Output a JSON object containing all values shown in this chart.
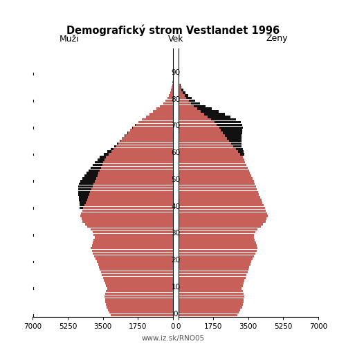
{
  "title": "Demografický strom Vestlandet 1996",
  "col_muzi": "Muži",
  "col_vek": "Vek",
  "col_zeny": "Ženy",
  "footer": "www.iz.sk/RNO05",
  "bar_color": "#c8605a",
  "black_color": "#111111",
  "xlim": 7000,
  "male_red": [
    3100,
    3180,
    3250,
    3320,
    3370,
    3400,
    3380,
    3420,
    3400,
    3350,
    3300,
    3350,
    3390,
    3440,
    3500,
    3550,
    3600,
    3650,
    3700,
    3750,
    3800,
    3870,
    3940,
    4000,
    4050,
    4100,
    4060,
    4020,
    3970,
    3920,
    3960,
    4020,
    4130,
    4280,
    4400,
    4520,
    4580,
    4640,
    4590,
    4540,
    4480,
    4420,
    4360,
    4300,
    4250,
    4190,
    4140,
    4080,
    4020,
    3960,
    3900,
    3840,
    3780,
    3720,
    3660,
    3600,
    3540,
    3480,
    3420,
    3360,
    3200,
    3080,
    2960,
    2840,
    2720,
    2610,
    2490,
    2380,
    2260,
    2140,
    2020,
    1880,
    1720,
    1540,
    1360,
    1180,
    1000,
    820,
    650,
    500,
    380,
    280,
    200,
    140,
    95,
    62,
    40,
    25,
    15,
    8,
    4,
    2,
    1,
    0,
    0,
    0,
    0,
    0,
    0,
    0
  ],
  "male_black": [
    0,
    0,
    0,
    0,
    0,
    0,
    0,
    0,
    0,
    0,
    0,
    0,
    0,
    0,
    0,
    0,
    0,
    0,
    0,
    0,
    0,
    0,
    0,
    0,
    0,
    0,
    0,
    0,
    0,
    0,
    0,
    0,
    0,
    0,
    0,
    0,
    0,
    0,
    0,
    0,
    180,
    250,
    320,
    390,
    460,
    530,
    600,
    660,
    710,
    740,
    720,
    690,
    650,
    610,
    570,
    520,
    470,
    410,
    350,
    290,
    240,
    190,
    150,
    115,
    85,
    62,
    44,
    30,
    20,
    12,
    7,
    4,
    2,
    1,
    0,
    0,
    0,
    0,
    0,
    0,
    0,
    0,
    0,
    0,
    0,
    0,
    0,
    0,
    0,
    0,
    0,
    0,
    0,
    0,
    0,
    0,
    0,
    0,
    0,
    0
  ],
  "female_red": [
    2950,
    3040,
    3110,
    3190,
    3240,
    3270,
    3250,
    3290,
    3270,
    3220,
    3180,
    3220,
    3260,
    3310,
    3360,
    3410,
    3460,
    3510,
    3560,
    3610,
    3660,
    3730,
    3800,
    3860,
    3910,
    3960,
    3920,
    3880,
    3830,
    3780,
    3800,
    3860,
    3970,
    4120,
    4240,
    4360,
    4420,
    4480,
    4430,
    4380,
    4330,
    4270,
    4210,
    4150,
    4100,
    4040,
    3990,
    3930,
    3880,
    3820,
    3770,
    3710,
    3650,
    3590,
    3530,
    3470,
    3410,
    3350,
    3290,
    3230,
    3090,
    2980,
    2870,
    2750,
    2640,
    2540,
    2440,
    2340,
    2230,
    2130,
    2040,
    1930,
    1800,
    1640,
    1470,
    1310,
    1130,
    960,
    790,
    650,
    520,
    410,
    315,
    235,
    170,
    118,
    78,
    50,
    30,
    17,
    9,
    5,
    2,
    1,
    0,
    0,
    0,
    0,
    0,
    0
  ],
  "female_black": [
    0,
    0,
    0,
    0,
    0,
    0,
    0,
    0,
    0,
    0,
    0,
    0,
    0,
    0,
    0,
    0,
    0,
    0,
    0,
    0,
    0,
    0,
    0,
    0,
    0,
    0,
    0,
    0,
    0,
    0,
    0,
    0,
    0,
    0,
    0,
    0,
    0,
    0,
    0,
    0,
    0,
    0,
    0,
    0,
    0,
    0,
    0,
    0,
    0,
    0,
    0,
    0,
    0,
    0,
    0,
    0,
    0,
    0,
    0,
    0,
    220,
    280,
    350,
    430,
    520,
    620,
    730,
    840,
    960,
    1080,
    1190,
    1280,
    1330,
    1260,
    1150,
    1030,
    880,
    720,
    570,
    440,
    335,
    250,
    180,
    125,
    82,
    51,
    30,
    17,
    9,
    4,
    2,
    1,
    0,
    0,
    0,
    0,
    0,
    0,
    0,
    0
  ]
}
